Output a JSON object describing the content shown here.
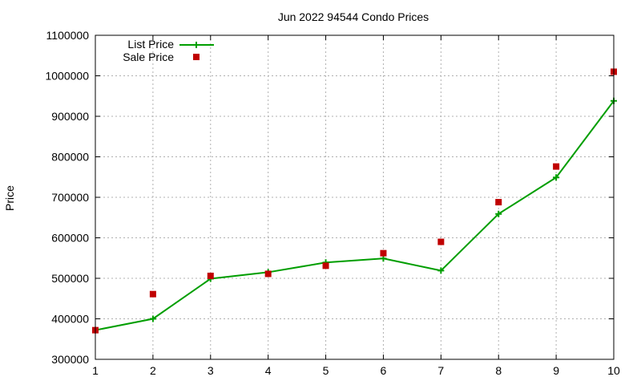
{
  "chart_data": {
    "type": "line",
    "title": "Jun 2022 94544 Condo Prices",
    "xlabel": "",
    "ylabel": "Price",
    "xlim": [
      1,
      10
    ],
    "ylim": [
      300000,
      1100000
    ],
    "x_ticks": [
      1,
      2,
      3,
      4,
      5,
      6,
      7,
      8,
      9,
      10
    ],
    "y_ticks": [
      300000,
      400000,
      500000,
      600000,
      700000,
      800000,
      900000,
      1000000,
      1100000
    ],
    "grid": true,
    "legend_position": "top-left",
    "x": [
      1,
      2,
      3,
      4,
      5,
      6,
      7,
      8,
      9,
      10
    ],
    "series": [
      {
        "name": "List Price",
        "style": "line-with-plus-markers",
        "color": "#009e00",
        "values": [
          372000,
          400000,
          499000,
          515000,
          539000,
          549000,
          519000,
          659000,
          749000,
          938000
        ]
      },
      {
        "name": "Sale Price",
        "style": "square-markers",
        "color": "#c00000",
        "values": [
          372000,
          461000,
          506000,
          511000,
          531000,
          562000,
          590000,
          688000,
          776000,
          1010000
        ]
      }
    ]
  }
}
